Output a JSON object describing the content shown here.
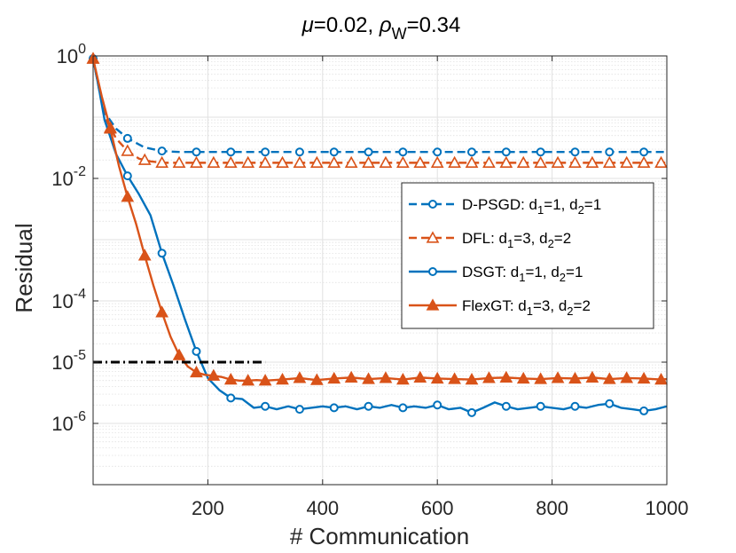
{
  "chart_data": {
    "type": "line",
    "title": {
      "mu_symbol": "μ",
      "mu_value": "=0.02, ",
      "rho_symbol": "ρ",
      "rho_sub": "W",
      "rho_value": "=0.34"
    },
    "xlabel": "# Communication",
    "ylabel": "Residual",
    "yscale": "log",
    "xlim": [
      0,
      1000
    ],
    "ylim": [
      1e-07,
      1
    ],
    "x_ticks": [
      200,
      400,
      600,
      800,
      1000
    ],
    "y_ticks": [
      {
        "base": "10",
        "exp": "0",
        "value": 1
      },
      {
        "base": "10",
        "exp": "-2",
        "value": 0.01
      },
      {
        "base": "10",
        "exp": "-4",
        "value": 0.0001
      },
      {
        "base": "10",
        "exp": "-5",
        "value": 1e-05
      },
      {
        "base": "10",
        "exp": "-6",
        "value": 1e-06
      }
    ],
    "grid": true,
    "legend_position": "right",
    "reference_line": {
      "style": "dash-dot",
      "color": "#000000",
      "y": 1e-05,
      "x": [
        0,
        300
      ]
    },
    "series": [
      {
        "name": "D-PSGD",
        "legend": {
          "prefix": "D-PSGD: d",
          "s1": "1",
          "mid": "=1, d",
          "s2": "2",
          "suffix": "=1"
        },
        "color": "#0072BD",
        "dash": "dashed",
        "marker": "circle-open",
        "x": [
          0,
          20,
          40,
          60,
          90,
          120,
          150,
          180,
          240,
          300,
          360,
          420,
          480,
          540,
          600,
          660,
          720,
          780,
          840,
          900,
          960,
          1000
        ],
        "y": [
          0.9,
          0.12,
          0.065,
          0.045,
          0.032,
          0.028,
          0.027,
          0.027,
          0.027,
          0.027,
          0.027,
          0.027,
          0.027,
          0.027,
          0.027,
          0.027,
          0.027,
          0.027,
          0.027,
          0.027,
          0.027,
          0.027
        ],
        "markers_x": [
          0,
          60,
          120,
          180,
          240,
          300,
          360,
          420,
          480,
          540,
          600,
          660,
          720,
          780,
          840,
          900,
          960
        ]
      },
      {
        "name": "DFL",
        "legend": {
          "prefix": "DFL: d",
          "s1": "1",
          "mid": "=3, d",
          "s2": "2",
          "suffix": "=2"
        },
        "color": "#D95319",
        "dash": "dashed",
        "marker": "triangle-open",
        "x": [
          0,
          20,
          40,
          60,
          80,
          100,
          120,
          160,
          200,
          300,
          400,
          500,
          600,
          700,
          800,
          900,
          1000
        ],
        "y": [
          0.9,
          0.1,
          0.045,
          0.028,
          0.021,
          0.019,
          0.018,
          0.018,
          0.018,
          0.018,
          0.018,
          0.018,
          0.018,
          0.018,
          0.018,
          0.018,
          0.018
        ],
        "markers_x": [
          0,
          30,
          60,
          90,
          120,
          150,
          180,
          210,
          240,
          270,
          300,
          330,
          360,
          390,
          420,
          450,
          480,
          510,
          540,
          570,
          600,
          630,
          660,
          690,
          720,
          750,
          780,
          810,
          840,
          870,
          900,
          930,
          960,
          990
        ]
      },
      {
        "name": "DSGT",
        "legend": {
          "prefix": "DSGT: d",
          "s1": "1",
          "mid": "=1, d",
          "s2": "2",
          "suffix": "=1"
        },
        "color": "#0072BD",
        "dash": "solid",
        "marker": "circle-open",
        "x": [
          0,
          10,
          20,
          40,
          60,
          80,
          100,
          120,
          140,
          160,
          180,
          200,
          220,
          240,
          260,
          280,
          300,
          320,
          340,
          360,
          380,
          400,
          420,
          440,
          460,
          480,
          500,
          520,
          540,
          560,
          580,
          600,
          620,
          640,
          660,
          680,
          700,
          720,
          740,
          760,
          780,
          800,
          820,
          840,
          860,
          880,
          900,
          920,
          940,
          960,
          980,
          1000
        ],
        "y": [
          0.9,
          0.3,
          0.09,
          0.025,
          0.011,
          0.0055,
          0.0025,
          0.0006,
          0.00018,
          5e-05,
          1.5e-05,
          5.5e-06,
          3.5e-06,
          2.6e-06,
          2.5e-06,
          1.8e-06,
          1.9e-06,
          1.7e-06,
          1.9e-06,
          1.7e-06,
          1.8e-06,
          1.9e-06,
          1.8e-06,
          1.9e-06,
          1.7e-06,
          1.9e-06,
          1.8e-06,
          2e-06,
          1.8e-06,
          1.9e-06,
          1.8e-06,
          2e-06,
          1.7e-06,
          1.8e-06,
          1.5e-06,
          1.8e-06,
          2.2e-06,
          1.9e-06,
          1.7e-06,
          1.8e-06,
          1.9e-06,
          1.8e-06,
          1.7e-06,
          1.9e-06,
          1.8e-06,
          2e-06,
          2.1e-06,
          1.8e-06,
          1.7e-06,
          1.6e-06,
          1.7e-06,
          1.9e-06
        ],
        "markers_x": [
          0,
          60,
          120,
          180,
          240,
          300,
          360,
          420,
          480,
          540,
          600,
          660,
          720,
          780,
          840,
          900,
          960
        ]
      },
      {
        "name": "FlexGT",
        "legend": {
          "prefix": "FlexGT: d",
          "s1": "1",
          "mid": "=3, d",
          "s2": "2",
          "suffix": "=2"
        },
        "color": "#D95319",
        "dash": "solid",
        "marker": "triangle-filled",
        "x": [
          0,
          15,
          30,
          45,
          60,
          75,
          90,
          105,
          120,
          135,
          150,
          165,
          180,
          195,
          210,
          225,
          240,
          255,
          270,
          285,
          300,
          330,
          360,
          390,
          420,
          450,
          480,
          510,
          540,
          570,
          600,
          630,
          660,
          690,
          720,
          750,
          780,
          810,
          840,
          870,
          900,
          930,
          960,
          990,
          1000
        ],
        "y": [
          0.9,
          0.22,
          0.065,
          0.016,
          0.005,
          0.0018,
          0.00055,
          0.00018,
          6.5e-05,
          2.6e-05,
          1.3e-05,
          8.5e-06,
          6.8e-06,
          6.2e-06,
          6e-06,
          5.7e-06,
          5.2e-06,
          5e-06,
          5e-06,
          5.1e-06,
          5e-06,
          5.2e-06,
          5.5e-06,
          5.1e-06,
          5.4e-06,
          5.6e-06,
          5.3e-06,
          5.5e-06,
          5.2e-06,
          5.6e-06,
          5.4e-06,
          5.3e-06,
          5.2e-06,
          5.5e-06,
          5.6e-06,
          5.4e-06,
          5.3e-06,
          5.5e-06,
          5.4e-06,
          5.6e-06,
          5.3e-06,
          5.5e-06,
          5.4e-06,
          5.2e-06,
          5.3e-06
        ],
        "markers_x": [
          0,
          30,
          60,
          90,
          120,
          150,
          180,
          210,
          240,
          270,
          300,
          330,
          360,
          390,
          420,
          450,
          480,
          510,
          540,
          570,
          600,
          630,
          660,
          690,
          720,
          750,
          780,
          810,
          840,
          870,
          900,
          930,
          960,
          990
        ]
      }
    ]
  }
}
